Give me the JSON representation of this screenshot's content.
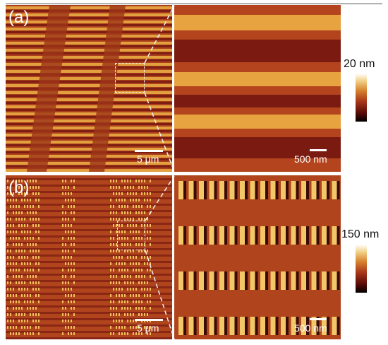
{
  "panels": {
    "a": {
      "label": "(a)",
      "scale_left": "5 μm",
      "scale_right": "500 nm",
      "colorbar_label": "20 nm"
    },
    "b": {
      "label": "(b)",
      "scale_left": "5 μm",
      "scale_right": "500 nm",
      "colorbar_label": "150 nm"
    }
  },
  "colors": {
    "background": "#b0441c",
    "dark_stripe": "#7a1a10",
    "bright_stripe": "#e8a640",
    "colorbar": [
      "#000000",
      "#5a0a06",
      "#a8361a",
      "#d7842f",
      "#f2d28a",
      "#ffffff"
    ]
  }
}
